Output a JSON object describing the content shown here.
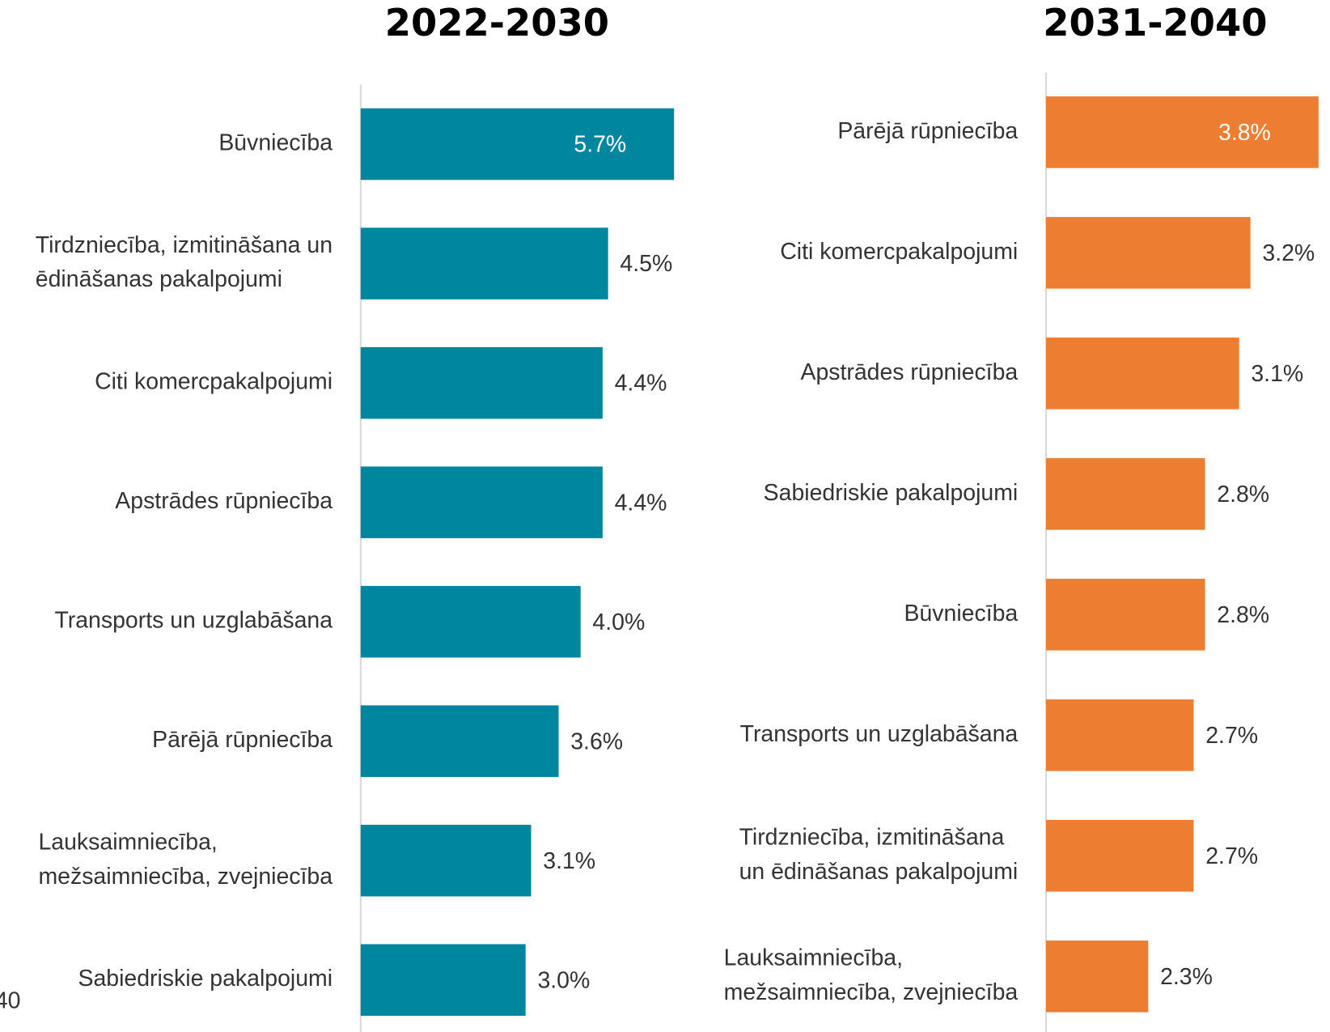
{
  "page_fragment": "40",
  "chart_data": [
    {
      "type": "barh",
      "title": "2022-2030",
      "color": "#00869e",
      "categories": [
        "Būvniecība",
        [
          "Tirdzniecība, izmitināšana un",
          "ēdināšanas pakalpojumi"
        ],
        "Citi komercpakalpojumi",
        "Apstrādes rūpniecība",
        "Transports un uzglabāšana",
        "Pārējā rūpniecība",
        [
          "Lauksaimniecība,",
          "mežsaimniecība, zvejniecība"
        ],
        "Sabiedriskie pakalpojumi"
      ],
      "values": [
        5.7,
        4.5,
        4.4,
        4.4,
        4.0,
        3.6,
        3.1,
        3.0
      ],
      "value_labels": [
        "5.7%",
        "4.5%",
        "4.4%",
        "4.4%",
        "4.0%",
        "3.6%",
        "3.1%",
        "3.0%"
      ],
      "xlim": [
        0,
        6.0
      ]
    },
    {
      "type": "barh",
      "title": "2031-2040",
      "color": "#ed7d31",
      "categories": [
        "Pārējā rūpniecība",
        "Citi komercpakalpojumi",
        "Apstrādes rūpniecība",
        "Sabiedriskie pakalpojumi",
        "Būvniecība",
        "Transports un uzglabāšana",
        [
          "Tirdzniecība, izmitināšana",
          "un ēdināšanas pakalpojumi"
        ],
        [
          "Lauksaimniecība,",
          "mežsaimniecība, zvejniecība"
        ]
      ],
      "values": [
        3.8,
        3.2,
        3.1,
        2.8,
        2.8,
        2.7,
        2.7,
        2.3
      ],
      "value_labels": [
        "3.8%",
        "3.2%",
        "3.1%",
        "2.8%",
        "2.8%",
        "2.7%",
        "2.7%",
        "2.3%"
      ],
      "xlim": [
        1.4,
        3.9
      ]
    }
  ]
}
